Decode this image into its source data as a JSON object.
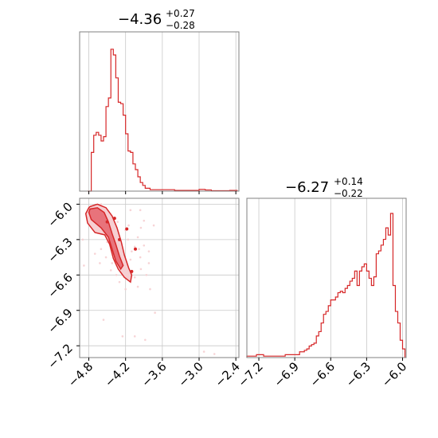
{
  "colors": {
    "line": "#d62728",
    "grid": "#c8c8c8",
    "frame": "#808080",
    "fill_inner": "#e8737b",
    "fill_outer": "#f6cfd2"
  },
  "chart_data": [
    {
      "id": "hist-x",
      "type": "histogram",
      "title": {
        "main": "−4.36",
        "sup": "+0.27",
        "sub": "−0.28"
      },
      "xlim": [
        -4.95,
        -2.35
      ],
      "grid": true,
      "x_ticks": [
        -4.8,
        -4.2,
        -3.6,
        -3.0,
        -2.4
      ],
      "bin_edges": [
        -4.82,
        -4.76,
        -4.72,
        -4.68,
        -4.64,
        -4.6,
        -4.56,
        -4.52,
        -4.48,
        -4.44,
        -4.4,
        -4.36,
        -4.32,
        -4.28,
        -4.24,
        -4.2,
        -4.16,
        -4.12,
        -4.08,
        -4.04,
        -4.0,
        -3.96,
        -3.92,
        -3.88,
        -3.8,
        -3.72,
        -3.64,
        -3.56,
        -3.48,
        -3.4,
        -3.3,
        -3.2,
        -3.0,
        -2.9,
        -2.8,
        -2.7,
        -2.6,
        -2.5,
        -2.38
      ],
      "counts": [
        0,
        0.27,
        0.39,
        0.41,
        0.39,
        0.35,
        0.38,
        0.59,
        0.65,
        0.99,
        0.95,
        0.79,
        0.62,
        0.61,
        0.53,
        0.4,
        0.28,
        0.27,
        0.19,
        0.15,
        0.1,
        0.06,
        0.04,
        0.02,
        0.01,
        0.01,
        0.01,
        0.01,
        0.01,
        0.005,
        0.005,
        0.005,
        0.012,
        0.008,
        0.003,
        0.003,
        0.003,
        0.005
      ]
    },
    {
      "id": "hist-y",
      "type": "histogram",
      "title": {
        "main": "−6.27",
        "sup": "+0.14",
        "sub": "−0.22"
      },
      "xlim": [
        -7.3,
        -5.97
      ],
      "grid": true,
      "x_ticks": [
        -7.2,
        -6.9,
        -6.6,
        -6.3,
        -6.0
      ],
      "bin_edges": [
        -7.3,
        -7.22,
        -7.16,
        -7.1,
        -7.04,
        -6.98,
        -6.92,
        -6.86,
        -6.82,
        -6.8,
        -6.78,
        -6.76,
        -6.74,
        -6.72,
        -6.7,
        -6.68,
        -6.66,
        -6.64,
        -6.62,
        -6.6,
        -6.58,
        -6.56,
        -6.54,
        -6.52,
        -6.5,
        -6.48,
        -6.46,
        -6.44,
        -6.42,
        -6.4,
        -6.38,
        -6.36,
        -6.34,
        -6.32,
        -6.3,
        -6.28,
        -6.26,
        -6.24,
        -6.22,
        -6.2,
        -6.18,
        -6.16,
        -6.14,
        -6.12,
        -6.1,
        -6.08,
        -6.06,
        -6.04,
        -6.02,
        -6.0,
        -5.98
      ],
      "counts": [
        0.01,
        0.02,
        0.01,
        0.01,
        0.01,
        0.02,
        0.02,
        0.04,
        0.05,
        0.06,
        0.08,
        0.09,
        0.1,
        0.15,
        0.18,
        0.24,
        0.3,
        0.32,
        0.36,
        0.4,
        0.4,
        0.42,
        0.45,
        0.46,
        0.45,
        0.48,
        0.5,
        0.53,
        0.55,
        0.6,
        0.5,
        0.6,
        0.63,
        0.65,
        0.6,
        0.55,
        0.5,
        0.56,
        0.72,
        0.74,
        0.78,
        0.82,
        0.9,
        0.85,
        1.0,
        0.5,
        0.32,
        0.24,
        0.12,
        0.06
      ],
      "x_tick_labels": [
        "−7.2",
        "−6.9",
        "−6.6",
        "−6.3",
        "−6.0"
      ]
    },
    {
      "id": "corner-2d",
      "type": "scatter",
      "xlim": [
        -4.95,
        -2.35
      ],
      "ylim": [
        -7.3,
        -5.95
      ],
      "grid": true,
      "x_ticks": [
        -4.8,
        -4.2,
        -3.6,
        -3.0,
        -2.4
      ],
      "y_ticks": [
        -6.0,
        -6.3,
        -6.6,
        -6.9,
        -7.2
      ],
      "x_tick_labels": [
        "−4.8",
        "−4.2",
        "−3.6",
        "−3.0",
        "−2.4"
      ],
      "y_tick_labels": [
        "−6.0",
        "−6.3",
        "−6.6",
        "−6.9",
        "−7.2"
      ],
      "contour_outer": [
        [
          -4.78,
          -6.02
        ],
        [
          -4.66,
          -6.0
        ],
        [
          -4.52,
          -6.03
        ],
        [
          -4.42,
          -6.1
        ],
        [
          -4.34,
          -6.2
        ],
        [
          -4.27,
          -6.32
        ],
        [
          -4.22,
          -6.43
        ],
        [
          -4.15,
          -6.54
        ],
        [
          -4.1,
          -6.6
        ],
        [
          -4.12,
          -6.66
        ],
        [
          -4.22,
          -6.62
        ],
        [
          -4.32,
          -6.55
        ],
        [
          -4.4,
          -6.46
        ],
        [
          -4.46,
          -6.34
        ],
        [
          -4.54,
          -6.26
        ],
        [
          -4.7,
          -6.24
        ],
        [
          -4.82,
          -6.16
        ],
        [
          -4.85,
          -6.08
        ],
        [
          -4.8,
          -6.03
        ]
      ],
      "contour_inner": [
        [
          -4.78,
          -6.04
        ],
        [
          -4.66,
          -6.03
        ],
        [
          -4.55,
          -6.07
        ],
        [
          -4.48,
          -6.15
        ],
        [
          -4.42,
          -6.25
        ],
        [
          -4.36,
          -6.34
        ],
        [
          -4.3,
          -6.44
        ],
        [
          -4.24,
          -6.52
        ],
        [
          -4.28,
          -6.55
        ],
        [
          -4.36,
          -6.48
        ],
        [
          -4.42,
          -6.38
        ],
        [
          -4.48,
          -6.28
        ],
        [
          -4.6,
          -6.2
        ],
        [
          -4.76,
          -6.13
        ],
        [
          -4.8,
          -6.07
        ]
      ],
      "scatter": [
        [
          -4.33,
          -6.15
        ],
        [
          -4.4,
          -6.18
        ],
        [
          -4.2,
          -6.22
        ],
        [
          -4.05,
          -6.36
        ],
        [
          -4.1,
          -6.58
        ],
        [
          -4.5,
          -6.2
        ],
        [
          -4.26,
          -6.48
        ],
        [
          -3.96,
          -6.05
        ],
        [
          -3.9,
          -6.14
        ],
        [
          -4.0,
          -6.28
        ],
        [
          -3.82,
          -6.5
        ],
        [
          -3.8,
          -6.72
        ],
        [
          -4.05,
          -6.62
        ],
        [
          -4.6,
          -6.38
        ],
        [
          -4.7,
          -6.42
        ],
        [
          -4.52,
          -6.45
        ],
        [
          -3.96,
          -6.45
        ],
        [
          -4.16,
          -6.3
        ],
        [
          -4.3,
          -6.66
        ],
        [
          -4.44,
          -6.56
        ],
        [
          -4.62,
          -6.5
        ],
        [
          -4.9,
          -6.3
        ],
        [
          -4.88,
          -6.52
        ],
        [
          -3.9,
          -6.35
        ],
        [
          -3.86,
          -6.6
        ],
        [
          -4.0,
          -6.7
        ],
        [
          -4.2,
          -6.72
        ],
        [
          -3.74,
          -6.18
        ],
        [
          -3.72,
          -6.92
        ],
        [
          -4.56,
          -6.98
        ],
        [
          -4.25,
          -7.12
        ],
        [
          -4.05,
          -7.12
        ],
        [
          -3.88,
          -7.15
        ],
        [
          -2.92,
          -7.25
        ],
        [
          -2.75,
          -7.27
        ],
        [
          -4.12,
          -6.05
        ],
        [
          -4.6,
          -6.0
        ],
        [
          -3.95,
          -6.2
        ],
        [
          -4.35,
          -6.4
        ],
        [
          -4.12,
          -6.47
        ],
        [
          -3.95,
          -6.55
        ],
        [
          -4.35,
          -6.6
        ],
        [
          -4.5,
          -6.32
        ],
        [
          -4.42,
          -6.5
        ],
        [
          -3.82,
          -6.4
        ],
        [
          -4.15,
          -6.18
        ],
        [
          -3.98,
          -6.38
        ],
        [
          -4.1,
          -6.4
        ]
      ],
      "highlight_points": [
        [
          -4.18,
          -6.21
        ],
        [
          -4.38,
          -6.12
        ],
        [
          -4.04,
          -6.38
        ],
        [
          -4.1,
          -6.57
        ],
        [
          -4.5,
          -6.15
        ],
        [
          -4.3,
          -6.3
        ]
      ]
    }
  ]
}
